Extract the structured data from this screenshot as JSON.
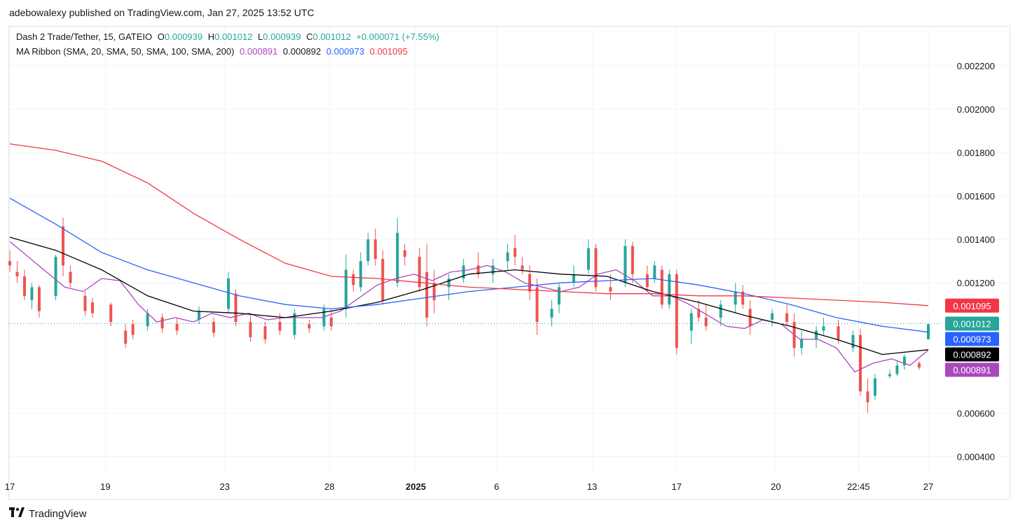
{
  "header": {
    "text": "adebowalexy published on TradingView.com, Jan 27, 2025 13:52 UTC"
  },
  "legend": {
    "symbol": "Dash 2 Trade/Tether, 15, GATEIO",
    "o_label": "O",
    "o_value": "0.000939",
    "h_label": "H",
    "h_value": "0.001012",
    "l_label": "L",
    "l_value": "0.000939",
    "c_label": "C",
    "c_value": "0.001012",
    "change": "+0.000071 (+7.55%)",
    "ma_label": "MA Ribbon (SMA, 20, SMA, 50, SMA, 100, SMA, 200)",
    "ma_values": [
      "0.000891",
      "0.000892",
      "0.000973",
      "0.001095"
    ]
  },
  "brand": {
    "name": "TradingView"
  },
  "colors": {
    "up": "#26a69a",
    "down": "#ef5350",
    "sma20": "#ab47bc",
    "sma50": "#000000",
    "sma100": "#2962ff",
    "sma200": "#f23645",
    "grid": "#f0f3fa"
  },
  "chart_data": {
    "type": "candlestick",
    "ylim": [
      0.00035,
      0.00238
    ],
    "y_ticks": [
      "0.002200",
      "0.002000",
      "0.001800",
      "0.001600",
      "0.001400",
      "0.001200",
      "0.000600",
      "0.000400"
    ],
    "x_ticks": [
      "17",
      "19",
      "23",
      "28",
      "2025",
      "6",
      "13",
      "17",
      "20",
      "22:45",
      "27"
    ],
    "price_tags": [
      {
        "label": "0.001095",
        "value": 0.001095,
        "color": "#f23645",
        "text": "#ffffff"
      },
      {
        "label": "0.001012",
        "value": 0.001012,
        "color": "#26a69a",
        "text": "#ffffff"
      },
      {
        "label": "0.000973",
        "value": 0.000973,
        "color": "#2962ff",
        "text": "#ffffff"
      },
      {
        "label": "0.000892",
        "value": 0.000892,
        "color": "#000000",
        "text": "#ffffff"
      },
      {
        "label": "0.000891",
        "value": 0.000891,
        "color": "#ab47bc",
        "text": "#ffffff"
      }
    ],
    "current_price": 0.001012,
    "series": [
      {
        "name": "SMA 20",
        "color": "#ab47bc",
        "points": [
          [
            0,
            0.00139
          ],
          [
            0.02,
            0.00132
          ],
          [
            0.04,
            0.00125
          ],
          [
            0.06,
            0.00118
          ],
          [
            0.08,
            0.00116
          ],
          [
            0.1,
            0.00122
          ],
          [
            0.12,
            0.00121
          ],
          [
            0.14,
            0.0011
          ],
          [
            0.16,
            0.00102
          ],
          [
            0.18,
            0.00104
          ],
          [
            0.2,
            0.00102
          ],
          [
            0.22,
            0.00106
          ],
          [
            0.24,
            0.00104
          ],
          [
            0.26,
            0.00106
          ],
          [
            0.28,
            0.00103
          ],
          [
            0.3,
            0.00104
          ],
          [
            0.32,
            0.00104
          ],
          [
            0.34,
            0.00104
          ],
          [
            0.36,
            0.00107
          ],
          [
            0.38,
            0.00113
          ],
          [
            0.4,
            0.00119
          ],
          [
            0.42,
            0.00122
          ],
          [
            0.44,
            0.00124
          ],
          [
            0.46,
            0.00121
          ],
          [
            0.48,
            0.00125
          ],
          [
            0.5,
            0.00126
          ],
          [
            0.52,
            0.00128
          ],
          [
            0.54,
            0.00125
          ],
          [
            0.56,
            0.0012
          ],
          [
            0.58,
            0.00118
          ],
          [
            0.6,
            0.00116
          ],
          [
            0.62,
            0.00118
          ],
          [
            0.64,
            0.00124
          ],
          [
            0.66,
            0.00126
          ],
          [
            0.68,
            0.00121
          ],
          [
            0.7,
            0.00114
          ],
          [
            0.72,
            0.00114
          ],
          [
            0.74,
            0.0011
          ],
          [
            0.76,
            0.00105
          ],
          [
            0.78,
            0.001
          ],
          [
            0.8,
            0.00099
          ],
          [
            0.82,
            0.00103
          ],
          [
            0.84,
            0.00101
          ],
          [
            0.86,
            0.00094
          ],
          [
            0.88,
            0.00094
          ],
          [
            0.9,
            0.0009
          ],
          [
            0.92,
            0.00079
          ],
          [
            0.94,
            0.00083
          ],
          [
            0.96,
            0.00085
          ],
          [
            0.98,
            0.00082
          ],
          [
            1,
            0.000891
          ]
        ]
      },
      {
        "name": "SMA 50",
        "color": "#000000",
        "points": [
          [
            0,
            0.00141
          ],
          [
            0.05,
            0.00135
          ],
          [
            0.1,
            0.00126
          ],
          [
            0.15,
            0.00114
          ],
          [
            0.2,
            0.00107
          ],
          [
            0.25,
            0.00106
          ],
          [
            0.3,
            0.00104
          ],
          [
            0.35,
            0.00107
          ],
          [
            0.4,
            0.00111
          ],
          [
            0.45,
            0.00117
          ],
          [
            0.5,
            0.00124
          ],
          [
            0.55,
            0.00126
          ],
          [
            0.6,
            0.00124
          ],
          [
            0.65,
            0.00123
          ],
          [
            0.7,
            0.00116
          ],
          [
            0.75,
            0.00111
          ],
          [
            0.8,
            0.00105
          ],
          [
            0.85,
            0.001
          ],
          [
            0.9,
            0.00094
          ],
          [
            0.95,
            0.00087
          ],
          [
            1,
            0.000892
          ]
        ]
      },
      {
        "name": "SMA 100",
        "color": "#2962ff",
        "points": [
          [
            0,
            0.00159
          ],
          [
            0.05,
            0.00147
          ],
          [
            0.1,
            0.00134
          ],
          [
            0.15,
            0.00126
          ],
          [
            0.2,
            0.0012
          ],
          [
            0.25,
            0.00114
          ],
          [
            0.3,
            0.0011
          ],
          [
            0.35,
            0.00108
          ],
          [
            0.4,
            0.0011
          ],
          [
            0.45,
            0.00113
          ],
          [
            0.5,
            0.00116
          ],
          [
            0.55,
            0.00118
          ],
          [
            0.6,
            0.0012
          ],
          [
            0.65,
            0.00121
          ],
          [
            0.7,
            0.00122
          ],
          [
            0.75,
            0.00119
          ],
          [
            0.8,
            0.00115
          ],
          [
            0.85,
            0.0011
          ],
          [
            0.9,
            0.00104
          ],
          [
            0.95,
            0.001
          ],
          [
            1,
            0.000973
          ]
        ]
      },
      {
        "name": "SMA 200",
        "color": "#f23645",
        "points": [
          [
            0,
            0.00184
          ],
          [
            0.05,
            0.00181
          ],
          [
            0.1,
            0.00176
          ],
          [
            0.15,
            0.00166
          ],
          [
            0.2,
            0.00152
          ],
          [
            0.25,
            0.0014
          ],
          [
            0.3,
            0.00129
          ],
          [
            0.35,
            0.00123
          ],
          [
            0.4,
            0.00122
          ],
          [
            0.45,
            0.0012
          ],
          [
            0.5,
            0.00118
          ],
          [
            0.55,
            0.00117
          ],
          [
            0.6,
            0.00116
          ],
          [
            0.65,
            0.00115
          ],
          [
            0.7,
            0.00115
          ],
          [
            0.75,
            0.00114
          ],
          [
            0.8,
            0.00114
          ],
          [
            0.85,
            0.00113
          ],
          [
            0.9,
            0.00112
          ],
          [
            0.95,
            0.00111
          ],
          [
            1,
            0.001095
          ]
        ]
      }
    ],
    "candles": [
      [
        0.0,
        0.0013,
        0.00135,
        0.00125,
        0.00128
      ],
      [
        0.008,
        0.00125,
        0.0013,
        0.0012,
        0.00123
      ],
      [
        0.016,
        0.00123,
        0.00126,
        0.00112,
        0.00114
      ],
      [
        0.024,
        0.00112,
        0.0012,
        0.00108,
        0.00118
      ],
      [
        0.032,
        0.00118,
        0.00119,
        0.00104,
        0.00107
      ],
      [
        0.05,
        0.00114,
        0.00133,
        0.00112,
        0.00132
      ],
      [
        0.058,
        0.00146,
        0.0015,
        0.00123,
        0.00128
      ],
      [
        0.066,
        0.00125,
        0.00128,
        0.00118,
        0.0012
      ],
      [
        0.082,
        0.00114,
        0.00116,
        0.00105,
        0.00107
      ],
      [
        0.09,
        0.00111,
        0.00113,
        0.00104,
        0.00106
      ],
      [
        0.11,
        0.0011,
        0.00111,
        0.001,
        0.00102
      ],
      [
        0.126,
        0.00098,
        0.00101,
        0.0009,
        0.00092
      ],
      [
        0.134,
        0.00101,
        0.00103,
        0.00094,
        0.00096
      ],
      [
        0.15,
        0.001,
        0.00108,
        0.00098,
        0.00106
      ],
      [
        0.166,
        0.00104,
        0.00106,
        0.00097,
        0.00099
      ],
      [
        0.182,
        0.00101,
        0.00104,
        0.00096,
        0.00098
      ],
      [
        0.206,
        0.00103,
        0.00109,
        0.00101,
        0.00107
      ],
      [
        0.222,
        0.00102,
        0.00104,
        0.00095,
        0.00097
      ],
      [
        0.238,
        0.00108,
        0.00125,
        0.00106,
        0.00122
      ],
      [
        0.246,
        0.00115,
        0.00117,
        0.001,
        0.00102
      ],
      [
        0.262,
        0.00102,
        0.00106,
        0.00093,
        0.00095
      ],
      [
        0.278,
        0.001,
        0.00102,
        0.00092,
        0.00094
      ],
      [
        0.294,
        0.00102,
        0.00106,
        0.00096,
        0.00098
      ],
      [
        0.31,
        0.00096,
        0.00108,
        0.00094,
        0.00106
      ],
      [
        0.326,
        0.00101,
        0.00103,
        0.00097,
        0.00099
      ],
      [
        0.342,
        0.001,
        0.0011,
        0.00098,
        0.00108
      ],
      [
        0.35,
        0.00104,
        0.00108,
        0.00098,
        0.001
      ],
      [
        0.366,
        0.00108,
        0.00133,
        0.00104,
        0.00126
      ],
      [
        0.374,
        0.00124,
        0.00126,
        0.00116,
        0.00119
      ],
      [
        0.382,
        0.00118,
        0.00134,
        0.00116,
        0.0013
      ],
      [
        0.39,
        0.0013,
        0.00143,
        0.00128,
        0.0014
      ],
      [
        0.398,
        0.0014,
        0.00145,
        0.00128,
        0.00131
      ],
      [
        0.406,
        0.00131,
        0.00135,
        0.0011,
        0.00112
      ],
      [
        0.422,
        0.0012,
        0.0015,
        0.00118,
        0.00143
      ],
      [
        0.43,
        0.00135,
        0.00138,
        0.00128,
        0.00132
      ],
      [
        0.446,
        0.00132,
        0.00136,
        0.00116,
        0.00118
      ],
      [
        0.454,
        0.00125,
        0.00138,
        0.001,
        0.00104
      ],
      [
        0.462,
        0.0012,
        0.00126,
        0.00106,
        0.00112
      ],
      [
        0.478,
        0.00118,
        0.00124,
        0.00112,
        0.00122
      ],
      [
        0.494,
        0.00122,
        0.00131,
        0.0012,
        0.00128
      ],
      [
        0.51,
        0.00128,
        0.00134,
        0.00122,
        0.00124
      ],
      [
        0.526,
        0.00124,
        0.00131,
        0.0012,
        0.00128
      ],
      [
        0.542,
        0.0013,
        0.00138,
        0.00126,
        0.00134
      ],
      [
        0.55,
        0.00136,
        0.00142,
        0.00128,
        0.00132
      ],
      [
        0.558,
        0.00128,
        0.00132,
        0.00124,
        0.00126
      ],
      [
        0.566,
        0.00124,
        0.00128,
        0.00112,
        0.00116
      ],
      [
        0.574,
        0.00118,
        0.00122,
        0.00096,
        0.00102
      ],
      [
        0.59,
        0.00104,
        0.00112,
        0.001,
        0.00108
      ],
      [
        0.598,
        0.0011,
        0.0012,
        0.00106,
        0.00118
      ],
      [
        0.614,
        0.0012,
        0.00128,
        0.00118,
        0.00124
      ],
      [
        0.63,
        0.00126,
        0.0014,
        0.00124,
        0.00136
      ],
      [
        0.638,
        0.00136,
        0.00138,
        0.00116,
        0.00118
      ],
      [
        0.654,
        0.00118,
        0.00124,
        0.00112,
        0.00116
      ],
      [
        0.67,
        0.0012,
        0.0014,
        0.00118,
        0.00137
      ],
      [
        0.678,
        0.00137,
        0.00139,
        0.0012,
        0.00124
      ],
      [
        0.694,
        0.00124,
        0.00128,
        0.00116,
        0.00118
      ],
      [
        0.702,
        0.00122,
        0.0013,
        0.0012,
        0.00128
      ],
      [
        0.71,
        0.00126,
        0.00128,
        0.00108,
        0.0011
      ],
      [
        0.718,
        0.0011,
        0.00126,
        0.00108,
        0.00124
      ],
      [
        0.726,
        0.00124,
        0.00126,
        0.00087,
        0.0009
      ],
      [
        0.742,
        0.00098,
        0.00108,
        0.00092,
        0.00106
      ],
      [
        0.75,
        0.00108,
        0.00112,
        0.00102,
        0.00104
      ],
      [
        0.758,
        0.00104,
        0.0011,
        0.00098,
        0.001
      ],
      [
        0.774,
        0.00104,
        0.00112,
        0.001,
        0.0011
      ],
      [
        0.79,
        0.0011,
        0.0012,
        0.00106,
        0.00116
      ],
      [
        0.798,
        0.00116,
        0.00119,
        0.00108,
        0.0011
      ],
      [
        0.806,
        0.00108,
        0.00112,
        0.00096,
        0.001
      ],
      [
        0.83,
        0.00103,
        0.00108,
        0.001,
        0.00106
      ],
      [
        0.846,
        0.00106,
        0.0011,
        0.001,
        0.00102
      ],
      [
        0.854,
        0.00102,
        0.00106,
        0.00086,
        0.0009
      ],
      [
        0.862,
        0.0009,
        0.00098,
        0.00087,
        0.00094
      ],
      [
        0.878,
        0.00094,
        0.001,
        0.0009,
        0.00098
      ],
      [
        0.886,
        0.00098,
        0.00104,
        0.00096,
        0.001
      ],
      [
        0.902,
        0.001,
        0.00103,
        0.00092,
        0.00094
      ],
      [
        0.918,
        0.0009,
        0.00098,
        0.00088,
        0.00096
      ],
      [
        0.926,
        0.00096,
        0.00099,
        0.00068,
        0.0007
      ],
      [
        0.934,
        0.0007,
        0.00076,
        0.0006,
        0.00065
      ],
      [
        0.942,
        0.00068,
        0.00078,
        0.00066,
        0.00076
      ],
      [
        0.958,
        0.00077,
        0.0008,
        0.00076,
        0.00078
      ],
      [
        0.966,
        0.00078,
        0.00084,
        0.00077,
        0.00082
      ],
      [
        0.974,
        0.00082,
        0.00087,
        0.0008,
        0.00086
      ],
      [
        0.99,
        0.00083,
        0.00084,
        0.0008,
        0.00081
      ],
      [
        1.0,
        0.00094,
        0.00101,
        0.00094,
        0.00101
      ]
    ]
  }
}
